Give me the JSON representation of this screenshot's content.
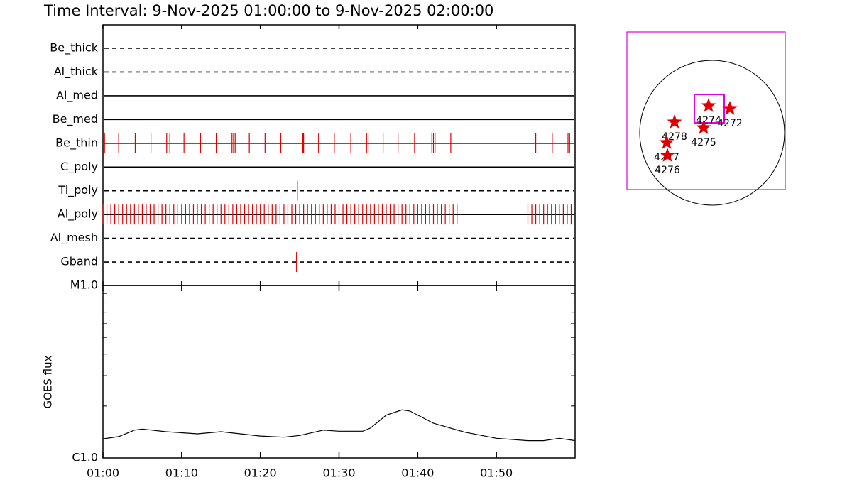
{
  "title": "Time Interval:  9-Nov-2025 01:00:00 to  9-Nov-2025 02:00:00",
  "chart_data": [
    {
      "type": "event",
      "xlim": [
        0,
        60
      ],
      "xticks": [
        {
          "value": 0,
          "label": "01:00"
        },
        {
          "value": 10,
          "label": "01:10"
        },
        {
          "value": 20,
          "label": "01:20"
        },
        {
          "value": 30,
          "label": "01:30"
        },
        {
          "value": 40,
          "label": "01:40"
        },
        {
          "value": 50,
          "label": "01:50"
        }
      ],
      "series": [
        {
          "name": "Be_thick",
          "line": "dashed",
          "color": "#e00000",
          "x": []
        },
        {
          "name": "Al_thick",
          "line": "dashed",
          "color": "#e00000",
          "x": []
        },
        {
          "name": "Al_med",
          "line": "solid",
          "color": "#e00000",
          "x": []
        },
        {
          "name": "Be_med",
          "line": "solid",
          "color": "#e00000",
          "x": []
        },
        {
          "name": "Be_thin",
          "line": "solid",
          "color": "#e00000",
          "x": [
            0.2,
            2.0,
            4.1,
            6.1,
            8.1,
            8.5,
            10.3,
            12.4,
            14.4,
            16.4,
            16.6,
            16.8,
            18.6,
            20.6,
            22.6,
            25.4,
            25.5,
            27.4,
            29.4,
            31.5,
            33.5,
            33.7,
            35.6,
            37.5,
            39.6,
            41.8,
            42.0,
            42.2,
            44.2,
            55.0,
            57.1,
            59.1,
            59.3
          ]
        },
        {
          "name": "C_poly",
          "line": "solid",
          "color": "#e00000",
          "x": []
        },
        {
          "name": "Ti_poly",
          "line": "dashed",
          "color": "#1a1a80",
          "x": [
            24.7
          ]
        },
        {
          "name": "Al_poly",
          "line": "solid",
          "color": "#e00000",
          "x": [
            0,
            0.5,
            1,
            1.5,
            2,
            2.5,
            3,
            3.5,
            4,
            4.5,
            5,
            5.5,
            6,
            6.5,
            7,
            7.5,
            8,
            8.5,
            9,
            9.5,
            10,
            10.5,
            11,
            11.5,
            12,
            12.5,
            13,
            13.5,
            14,
            14.5,
            15,
            15.5,
            16,
            16.5,
            17,
            17.5,
            18,
            18.5,
            19,
            19.5,
            20,
            20.5,
            21,
            21.5,
            22,
            22.5,
            23,
            23.5,
            24,
            24.5,
            25,
            25.5,
            26,
            26.5,
            27,
            27.5,
            28,
            28.5,
            29,
            29.5,
            30,
            30.5,
            31,
            31.5,
            32,
            32.5,
            33,
            33.5,
            34,
            34.5,
            35,
            35.5,
            36,
            36.5,
            37,
            37.5,
            38,
            38.5,
            39,
            39.5,
            40,
            40.5,
            41,
            41.5,
            42,
            42.5,
            43,
            43.5,
            44,
            44.5,
            45,
            54,
            54.5,
            55,
            55.5,
            56,
            56.5,
            57,
            57.5,
            58,
            58.5,
            59,
            59.5
          ]
        },
        {
          "name": "Al_mesh",
          "line": "dashed",
          "color": "#e00000",
          "x": []
        },
        {
          "name": "Gband",
          "line": "dashed",
          "color": "#e00000",
          "x": [
            24.6
          ]
        }
      ]
    },
    {
      "type": "line",
      "ylabel": "GOES flux",
      "log": true,
      "color": "#000000",
      "xlim": [
        0,
        60
      ],
      "xticks": [
        {
          "value": 0,
          "label": "01:00"
        },
        {
          "value": 10,
          "label": "01:10"
        },
        {
          "value": 20,
          "label": "01:20"
        },
        {
          "value": 30,
          "label": "01:30"
        },
        {
          "value": 40,
          "label": "01:40"
        },
        {
          "value": 50,
          "label": "01:50"
        }
      ],
      "ylim": [
        1e-06,
        1e-05
      ],
      "yticks": [
        {
          "value": 1e-06,
          "label": "C1.0"
        },
        {
          "value": 1e-05,
          "label": "M1.0"
        }
      ],
      "yminor": [
        2e-06,
        3e-06,
        4e-06,
        5e-06,
        6e-06,
        7e-06,
        8e-06,
        9e-06
      ],
      "x": [
        0,
        2,
        4,
        5,
        8,
        12,
        15,
        20,
        23,
        25,
        28,
        30,
        33,
        34,
        36,
        38,
        39,
        42,
        46,
        50,
        54,
        56,
        58,
        60
      ],
      "values": [
        1.29e-06,
        1.33e-06,
        1.45e-06,
        1.47e-06,
        1.42e-06,
        1.38e-06,
        1.42e-06,
        1.34e-06,
        1.32e-06,
        1.35e-06,
        1.45e-06,
        1.43e-06,
        1.43e-06,
        1.49e-06,
        1.77e-06,
        1.9e-06,
        1.87e-06,
        1.59e-06,
        1.41e-06,
        1.3e-06,
        1.26e-06,
        1.26e-06,
        1.3e-06,
        1.26e-06
      ]
    }
  ],
  "map": {
    "regions": [
      "4274",
      "4272",
      "4278",
      "4275",
      "4277",
      "4276"
    ]
  }
}
